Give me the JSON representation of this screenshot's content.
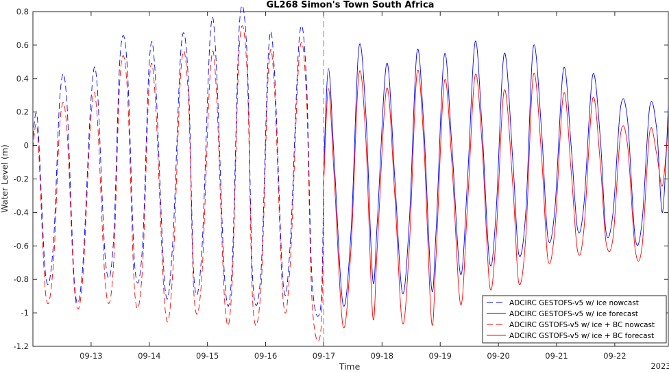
{
  "chart_data": {
    "type": "line",
    "title": "GL268 Simon's Town South Africa",
    "xlabel": "Time",
    "ylabel": "Water Level (m)",
    "year_label": "2023",
    "x_unit": "days, September 2023",
    "xlim": [
      12.0,
      22.92
    ],
    "ylim": [
      -1.2,
      0.8
    ],
    "x_ticks": [
      13,
      14,
      15,
      16,
      17,
      18,
      19,
      20,
      21,
      22
    ],
    "x_tick_labels": [
      "09-13",
      "09-14",
      "09-15",
      "09-16",
      "09-17",
      "09-18",
      "09-19",
      "09-20",
      "09-21",
      "09-22"
    ],
    "y_ticks": [
      -1.2,
      -1.0,
      -0.8,
      -0.6,
      -0.4,
      -0.2,
      0,
      0.2,
      0.4,
      0.6,
      0.8
    ],
    "y_tick_labels": [
      "-1.2",
      "-1",
      "-0.8",
      "-0.6",
      "-0.4",
      "-0.2",
      "0",
      "0.2",
      "0.4",
      "0.6",
      "0.8"
    ],
    "grid": false,
    "legend_position": "bottom-right",
    "nowcast_forecast_divider_x": 17.0,
    "series": [
      {
        "name": "ADCIRC GESTOFS-v5 w/ ice nowcast",
        "color": "#0000ff",
        "style": "dashed",
        "x": [
          12.0,
          12.08,
          12.22,
          12.35,
          12.47,
          12.58,
          12.72,
          12.85,
          13.0,
          13.1,
          13.25,
          13.38,
          13.5,
          13.62,
          13.75,
          13.88,
          14.0,
          14.1,
          14.27,
          14.4,
          14.55,
          14.67,
          14.77,
          14.9,
          15.05,
          15.15,
          15.3,
          15.42,
          15.55,
          15.68,
          15.78,
          15.92,
          16.05,
          16.15,
          16.3,
          16.42,
          16.58,
          16.7,
          16.8,
          16.95,
          17.0
        ],
        "y": [
          0.05,
          0.15,
          -0.78,
          -0.6,
          0.32,
          0.28,
          -0.85,
          -0.75,
          0.28,
          0.38,
          -0.7,
          -0.6,
          0.54,
          0.48,
          -0.72,
          -0.62,
          0.5,
          0.44,
          -0.85,
          -0.6,
          0.6,
          0.4,
          -0.8,
          -0.65,
          0.67,
          0.5,
          -0.82,
          -0.75,
          0.73,
          0.55,
          -0.82,
          -0.75,
          0.57,
          0.45,
          -0.82,
          -0.6,
          0.65,
          0.4,
          -0.82,
          -0.95,
          -0.1
        ]
      },
      {
        "name": "ADCIRC GESTOFS-v5 w/ ice forecast",
        "color": "#0000ff",
        "style": "solid",
        "x": [
          17.0,
          17.08,
          17.18,
          17.33,
          17.47,
          17.6,
          17.72,
          17.84,
          17.92,
          18.08,
          18.22,
          18.35,
          18.47,
          18.6,
          18.72,
          18.85,
          18.93,
          19.07,
          19.2,
          19.35,
          19.47,
          19.6,
          19.72,
          19.85,
          19.96,
          20.1,
          20.25,
          20.35,
          20.47,
          20.6,
          20.74,
          20.85,
          20.97,
          21.12,
          21.25,
          21.36,
          21.47,
          21.62,
          21.75,
          21.85,
          21.97,
          22.1,
          22.22,
          22.35,
          22.47,
          22.6,
          22.72,
          22.82,
          22.92
        ],
        "y": [
          -0.1,
          0.46,
          -0.1,
          -0.95,
          -0.5,
          0.58,
          0.2,
          -0.8,
          -0.45,
          0.49,
          -0.2,
          -0.88,
          -0.45,
          0.56,
          0.1,
          -0.85,
          -0.5,
          0.54,
          0.0,
          -0.77,
          -0.2,
          0.62,
          0.1,
          -0.7,
          -0.4,
          0.55,
          -0.1,
          -0.65,
          -0.4,
          0.59,
          0.1,
          -0.55,
          -0.38,
          0.46,
          0.0,
          -0.5,
          -0.35,
          0.42,
          0.05,
          -0.52,
          -0.4,
          0.23,
          0.15,
          -0.55,
          -0.45,
          0.23,
          0.1,
          -0.4,
          0.23
        ]
      },
      {
        "name": "ADCIRC GSTOFS-v5 w/ ice + BC nowcast",
        "color": "#ff0000",
        "style": "dashed",
        "x": [
          12.0,
          12.08,
          12.22,
          12.35,
          12.47,
          12.58,
          12.72,
          12.85,
          13.0,
          13.1,
          13.25,
          13.38,
          13.5,
          13.62,
          13.75,
          13.88,
          14.0,
          14.1,
          14.27,
          14.4,
          14.55,
          14.67,
          14.77,
          14.9,
          15.05,
          15.15,
          15.3,
          15.42,
          15.55,
          15.68,
          15.78,
          15.92,
          16.05,
          16.15,
          16.3,
          16.42,
          16.58,
          16.7,
          16.8,
          16.95,
          17.0
        ],
        "y": [
          -0.02,
          0.08,
          -0.89,
          -0.72,
          0.16,
          0.12,
          -0.88,
          -0.82,
          0.18,
          0.2,
          -0.85,
          -0.75,
          0.42,
          0.35,
          -0.88,
          -0.75,
          0.38,
          0.3,
          -0.97,
          -0.78,
          0.48,
          0.3,
          -0.9,
          -0.8,
          0.45,
          0.35,
          -0.95,
          -0.85,
          0.6,
          0.45,
          -0.95,
          -0.85,
          0.46,
          0.35,
          -0.92,
          -0.72,
          0.55,
          0.3,
          -0.95,
          -1.1,
          -0.2
        ]
      },
      {
        "name": "ADCIRC GSTOFS-v5 w/ ice + BC forecast",
        "color": "#ff0000",
        "style": "solid",
        "x": [
          17.0,
          17.08,
          17.18,
          17.33,
          17.47,
          17.6,
          17.72,
          17.84,
          17.92,
          18.08,
          18.22,
          18.35,
          18.47,
          18.6,
          18.72,
          18.85,
          18.93,
          19.07,
          19.2,
          19.35,
          19.47,
          19.6,
          19.72,
          19.85,
          19.96,
          20.1,
          20.25,
          20.35,
          20.47,
          20.6,
          20.74,
          20.85,
          20.97,
          21.12,
          21.25,
          21.36,
          21.47,
          21.62,
          21.75,
          21.85,
          21.97,
          22.1,
          22.22,
          22.35,
          22.47,
          22.6,
          22.72,
          22.82,
          22.92
        ],
        "y": [
          -0.2,
          0.34,
          -0.2,
          -1.08,
          -0.6,
          0.42,
          0.05,
          -1.02,
          -0.6,
          0.34,
          -0.3,
          -1.06,
          -0.6,
          0.43,
          0.0,
          -1.05,
          -0.65,
          0.38,
          -0.1,
          -0.95,
          -0.35,
          0.42,
          0.0,
          -0.84,
          -0.55,
          0.33,
          -0.25,
          -0.82,
          -0.55,
          0.42,
          -0.05,
          -0.68,
          -0.5,
          0.31,
          -0.15,
          -0.63,
          -0.5,
          0.28,
          -0.1,
          -0.58,
          -0.55,
          0.07,
          0.0,
          -0.62,
          -0.6,
          0.08,
          -0.05,
          -0.24,
          0.13
        ]
      }
    ]
  }
}
